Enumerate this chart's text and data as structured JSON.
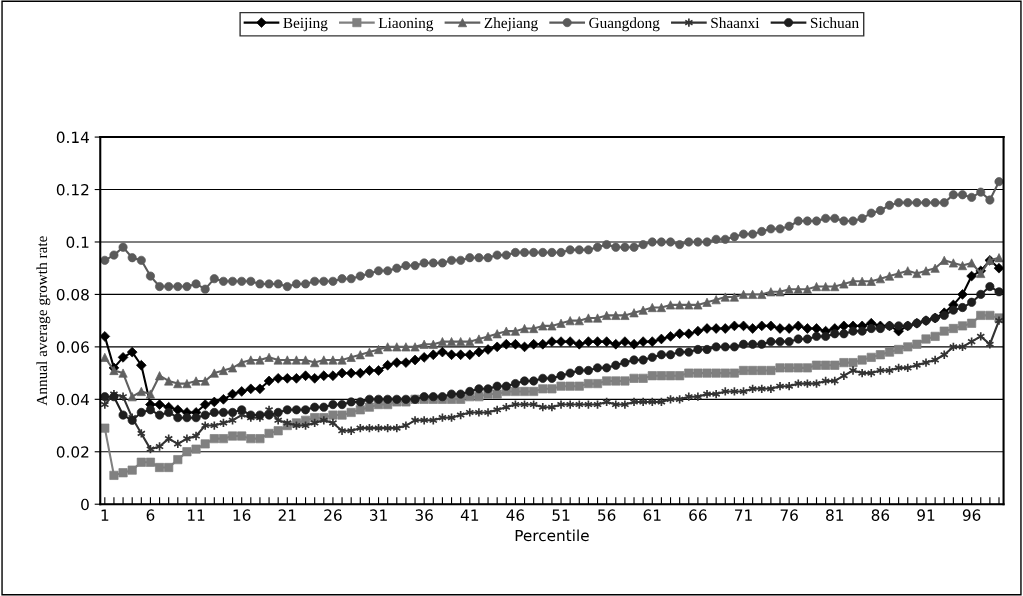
{
  "chart_data": {
    "type": "line",
    "xlabel": "Percentile",
    "ylabel": "Annual average growth rate",
    "categories": [
      "1",
      null,
      null,
      null,
      null,
      "6",
      null,
      null,
      null,
      null,
      "11",
      null,
      null,
      null,
      null,
      "16",
      null,
      null,
      null,
      null,
      "21",
      null,
      null,
      null,
      null,
      "26",
      null,
      null,
      null,
      null,
      "31",
      null,
      null,
      null,
      null,
      "36",
      null,
      null,
      null,
      null,
      "41",
      null,
      null,
      null,
      null,
      "46",
      null,
      null,
      null,
      null,
      "51",
      null,
      null,
      null,
      null,
      "56",
      null,
      null,
      null,
      null,
      "61",
      null,
      null,
      null,
      null,
      "66",
      null,
      null,
      null,
      null,
      "71",
      null,
      null,
      null,
      null,
      "76",
      null,
      null,
      null,
      null,
      "81",
      null,
      null,
      null,
      null,
      "86",
      null,
      null,
      null,
      null,
      "91",
      null,
      null,
      null,
      null,
      "96",
      null,
      null,
      null
    ],
    "ylim": [
      0,
      0.14
    ],
    "yticks": [
      0,
      0.02,
      0.04,
      0.06,
      0.08,
      0.1,
      0.12,
      0.14
    ],
    "grid": "y",
    "legend": "top",
    "line_style": "solid",
    "series": [
      {
        "name": "Beijing",
        "color": "#000000",
        "marker": "diamond",
        "values": [
          0.064,
          0.052,
          0.056,
          0.058,
          0.053,
          0.038,
          0.038,
          0.037,
          0.036,
          0.035,
          0.035,
          0.038,
          0.039,
          0.04,
          0.042,
          0.043,
          0.044,
          0.044,
          0.047,
          0.048,
          0.048,
          0.048,
          0.049,
          0.048,
          0.049,
          0.049,
          0.05,
          0.05,
          0.05,
          0.051,
          0.051,
          0.053,
          0.054,
          0.054,
          0.055,
          0.056,
          0.057,
          0.058,
          0.057,
          0.057,
          0.057,
          0.058,
          0.059,
          0.06,
          0.061,
          0.061,
          0.06,
          0.061,
          0.061,
          0.062,
          0.062,
          0.062,
          0.061,
          0.062,
          0.062,
          0.062,
          0.061,
          0.062,
          0.061,
          0.062,
          0.062,
          0.063,
          0.064,
          0.065,
          0.065,
          0.066,
          0.067,
          0.067,
          0.067,
          0.068,
          0.068,
          0.067,
          0.068,
          0.068,
          0.067,
          0.067,
          0.068,
          0.067,
          0.067,
          0.066,
          0.067,
          0.068,
          0.068,
          0.068,
          0.069,
          0.068,
          0.068,
          0.066,
          0.068,
          0.069,
          0.07,
          0.071,
          0.073,
          0.076,
          0.08,
          0.087,
          0.089,
          0.093,
          0.09
        ]
      },
      {
        "name": "Liaoning",
        "color": "#808080",
        "marker": "square",
        "values": [
          0.029,
          0.011,
          0.012,
          0.013,
          0.016,
          0.016,
          0.014,
          0.014,
          0.017,
          0.02,
          0.021,
          0.023,
          0.025,
          0.025,
          0.026,
          0.026,
          0.025,
          0.025,
          0.027,
          0.028,
          0.03,
          0.031,
          0.032,
          0.033,
          0.033,
          0.034,
          0.034,
          0.035,
          0.036,
          0.037,
          0.038,
          0.038,
          0.039,
          0.039,
          0.04,
          0.04,
          0.04,
          0.04,
          0.04,
          0.04,
          0.041,
          0.041,
          0.042,
          0.042,
          0.043,
          0.043,
          0.043,
          0.043,
          0.044,
          0.044,
          0.045,
          0.045,
          0.045,
          0.046,
          0.046,
          0.047,
          0.047,
          0.047,
          0.048,
          0.048,
          0.049,
          0.049,
          0.049,
          0.049,
          0.05,
          0.05,
          0.05,
          0.05,
          0.05,
          0.05,
          0.051,
          0.051,
          0.051,
          0.051,
          0.052,
          0.052,
          0.052,
          0.052,
          0.053,
          0.053,
          0.053,
          0.054,
          0.054,
          0.055,
          0.056,
          0.057,
          0.058,
          0.059,
          0.06,
          0.061,
          0.063,
          0.064,
          0.066,
          0.067,
          0.068,
          0.069,
          0.072,
          0.072,
          0.071
        ]
      },
      {
        "name": "Zhejiang",
        "color": "#606060",
        "marker": "triangle",
        "values": [
          0.056,
          0.051,
          0.05,
          0.041,
          0.043,
          0.042,
          0.049,
          0.047,
          0.046,
          0.046,
          0.047,
          0.047,
          0.05,
          0.051,
          0.052,
          0.054,
          0.055,
          0.055,
          0.056,
          0.055,
          0.055,
          0.055,
          0.055,
          0.054,
          0.055,
          0.055,
          0.055,
          0.056,
          0.057,
          0.058,
          0.059,
          0.06,
          0.06,
          0.06,
          0.06,
          0.061,
          0.061,
          0.062,
          0.062,
          0.062,
          0.062,
          0.063,
          0.064,
          0.065,
          0.066,
          0.066,
          0.067,
          0.067,
          0.068,
          0.068,
          0.069,
          0.07,
          0.07,
          0.071,
          0.071,
          0.072,
          0.072,
          0.072,
          0.073,
          0.074,
          0.075,
          0.075,
          0.076,
          0.076,
          0.076,
          0.076,
          0.077,
          0.078,
          0.079,
          0.079,
          0.08,
          0.08,
          0.08,
          0.081,
          0.081,
          0.082,
          0.082,
          0.082,
          0.083,
          0.083,
          0.083,
          0.084,
          0.085,
          0.085,
          0.085,
          0.086,
          0.087,
          0.088,
          0.089,
          0.088,
          0.089,
          0.09,
          0.093,
          0.092,
          0.091,
          0.092,
          0.088,
          0.093,
          0.094
        ]
      },
      {
        "name": "Guangdong",
        "color": "#5a5a5a",
        "marker": "circle",
        "values": [
          0.093,
          0.095,
          0.098,
          0.094,
          0.093,
          0.087,
          0.083,
          0.083,
          0.083,
          0.083,
          0.084,
          0.082,
          0.086,
          0.085,
          0.085,
          0.085,
          0.085,
          0.084,
          0.084,
          0.084,
          0.083,
          0.084,
          0.084,
          0.085,
          0.085,
          0.085,
          0.086,
          0.086,
          0.087,
          0.088,
          0.089,
          0.089,
          0.09,
          0.091,
          0.091,
          0.092,
          0.092,
          0.092,
          0.093,
          0.093,
          0.094,
          0.094,
          0.094,
          0.095,
          0.095,
          0.096,
          0.096,
          0.096,
          0.096,
          0.096,
          0.096,
          0.097,
          0.097,
          0.097,
          0.098,
          0.099,
          0.098,
          0.098,
          0.098,
          0.099,
          0.1,
          0.1,
          0.1,
          0.099,
          0.1,
          0.1,
          0.1,
          0.101,
          0.101,
          0.102,
          0.103,
          0.103,
          0.104,
          0.105,
          0.105,
          0.106,
          0.108,
          0.108,
          0.108,
          0.109,
          0.109,
          0.108,
          0.108,
          0.109,
          0.111,
          0.112,
          0.114,
          0.115,
          0.115,
          0.115,
          0.115,
          0.115,
          0.115,
          0.118,
          0.118,
          0.117,
          0.119,
          0.116,
          0.123
        ]
      },
      {
        "name": "Shaanxi",
        "color": "#333333",
        "marker": "cross",
        "values": [
          0.038,
          0.042,
          0.041,
          0.033,
          0.027,
          0.021,
          0.022,
          0.025,
          0.023,
          0.025,
          0.026,
          0.03,
          0.03,
          0.031,
          0.032,
          0.034,
          0.033,
          0.033,
          0.036,
          0.032,
          0.031,
          0.03,
          0.03,
          0.031,
          0.032,
          0.031,
          0.028,
          0.028,
          0.029,
          0.029,
          0.029,
          0.029,
          0.029,
          0.03,
          0.032,
          0.032,
          0.032,
          0.033,
          0.033,
          0.034,
          0.035,
          0.035,
          0.035,
          0.036,
          0.037,
          0.038,
          0.038,
          0.038,
          0.037,
          0.037,
          0.038,
          0.038,
          0.038,
          0.038,
          0.038,
          0.039,
          0.038,
          0.038,
          0.039,
          0.039,
          0.039,
          0.039,
          0.04,
          0.04,
          0.041,
          0.041,
          0.042,
          0.042,
          0.043,
          0.043,
          0.043,
          0.044,
          0.044,
          0.044,
          0.045,
          0.045,
          0.046,
          0.046,
          0.046,
          0.047,
          0.047,
          0.049,
          0.051,
          0.05,
          0.05,
          0.051,
          0.051,
          0.052,
          0.052,
          0.053,
          0.054,
          0.055,
          0.057,
          0.06,
          0.06,
          0.062,
          0.064,
          0.061,
          0.07
        ]
      },
      {
        "name": "Sichuan",
        "color": "#1e1e1e",
        "marker": "circle",
        "values": [
          0.041,
          0.041,
          0.034,
          0.032,
          0.035,
          0.036,
          0.034,
          0.035,
          0.033,
          0.033,
          0.033,
          0.034,
          0.035,
          0.035,
          0.035,
          0.036,
          0.034,
          0.034,
          0.034,
          0.035,
          0.036,
          0.036,
          0.036,
          0.037,
          0.037,
          0.038,
          0.038,
          0.039,
          0.039,
          0.04,
          0.04,
          0.04,
          0.04,
          0.04,
          0.04,
          0.041,
          0.041,
          0.041,
          0.042,
          0.042,
          0.043,
          0.044,
          0.044,
          0.045,
          0.045,
          0.046,
          0.047,
          0.047,
          0.048,
          0.048,
          0.049,
          0.05,
          0.051,
          0.051,
          0.052,
          0.052,
          0.053,
          0.054,
          0.055,
          0.055,
          0.056,
          0.057,
          0.057,
          0.058,
          0.058,
          0.059,
          0.059,
          0.06,
          0.06,
          0.06,
          0.061,
          0.061,
          0.061,
          0.062,
          0.062,
          0.062,
          0.063,
          0.063,
          0.064,
          0.064,
          0.065,
          0.065,
          0.066,
          0.066,
          0.067,
          0.067,
          0.068,
          0.068,
          0.068,
          0.069,
          0.07,
          0.071,
          0.072,
          0.074,
          0.075,
          0.077,
          0.08,
          0.083,
          0.081
        ]
      }
    ]
  }
}
